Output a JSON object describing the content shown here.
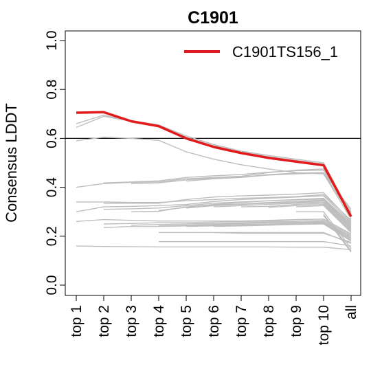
{
  "chart_data": {
    "type": "line",
    "title": "C1901",
    "xlabel": "",
    "ylabel": "Consensus LDDT",
    "categories": [
      "top 1",
      "top 2",
      "top 3",
      "top 4",
      "top 5",
      "top 6",
      "top 7",
      "top 8",
      "top 9",
      "top 10",
      "all"
    ],
    "yticks": [
      "0.0",
      "0.2",
      "0.4",
      "0.6",
      "0.8",
      "1.0"
    ],
    "ylim": [
      0,
      1
    ],
    "reference_line": 0.6,
    "legend": {
      "position": "top-right",
      "label": "C1901TS156_1"
    },
    "colors": {
      "highlight": "#e31a1c",
      "others": "#bebebe",
      "reference": "#000000"
    },
    "highlight_series": {
      "name": "C1901TS156_1",
      "values": [
        0.705,
        0.707,
        0.67,
        0.65,
        0.6,
        0.565,
        0.54,
        0.52,
        0.505,
        0.49,
        0.28
      ]
    },
    "other_series": [
      [
        0.66,
        0.695,
        0.672,
        0.655,
        0.61,
        0.575,
        0.548,
        0.53,
        0.515,
        0.5,
        0.29
      ],
      [
        0.645,
        0.69,
        0.67,
        0.65,
        0.605,
        0.57,
        0.545,
        0.525,
        0.51,
        0.495,
        0.285
      ],
      [
        0.59,
        0.605,
        0.6,
        0.592,
        0.545,
        0.515,
        0.492,
        0.475,
        0.46,
        0.455,
        0.27
      ],
      [
        0.4,
        0.415,
        0.42,
        0.422,
        0.435,
        0.44,
        0.445,
        0.46,
        0.47,
        0.475,
        0.3
      ],
      [
        null,
        0.418,
        0.422,
        0.426,
        0.44,
        0.447,
        0.452,
        0.462,
        0.468,
        0.47,
        0.295
      ],
      [
        null,
        null,
        0.415,
        0.418,
        0.43,
        0.438,
        0.442,
        0.452,
        0.458,
        0.46,
        0.31
      ],
      [
        null,
        null,
        null,
        null,
        0.425,
        0.435,
        0.44,
        0.45,
        0.455,
        0.458,
        0.285
      ],
      [
        0.34,
        0.34,
        0.338,
        0.338,
        0.345,
        0.35,
        0.355,
        0.358,
        0.362,
        0.37,
        0.265
      ],
      [
        null,
        0.335,
        0.335,
        0.335,
        0.35,
        0.36,
        0.365,
        0.368,
        0.372,
        0.378,
        0.26
      ],
      [
        0.3,
        0.32,
        0.322,
        0.325,
        0.33,
        0.342,
        0.35,
        0.355,
        0.36,
        0.365,
        0.255
      ],
      [
        null,
        0.31,
        0.312,
        0.315,
        0.325,
        0.335,
        0.34,
        0.345,
        0.35,
        0.355,
        0.25
      ],
      [
        null,
        null,
        0.3,
        0.302,
        0.32,
        0.33,
        0.338,
        0.345,
        0.348,
        0.352,
        0.245
      ],
      [
        null,
        null,
        null,
        0.305,
        0.318,
        0.328,
        0.332,
        0.338,
        0.342,
        0.348,
        0.24
      ],
      [
        null,
        null,
        null,
        null,
        0.315,
        0.325,
        0.33,
        0.335,
        0.338,
        0.345,
        0.235
      ],
      [
        null,
        null,
        null,
        null,
        null,
        0.32,
        0.325,
        0.33,
        0.335,
        0.34,
        0.23
      ],
      [
        null,
        null,
        null,
        null,
        null,
        null,
        0.32,
        0.322,
        0.33,
        0.335,
        0.225
      ],
      [
        null,
        null,
        null,
        null,
        null,
        null,
        null,
        0.318,
        0.325,
        0.33,
        0.22
      ],
      [
        null,
        null,
        null,
        null,
        null,
        null,
        null,
        null,
        0.32,
        0.325,
        0.215
      ],
      [
        0.26,
        0.268,
        0.265,
        0.262,
        0.262,
        0.262,
        0.262,
        0.265,
        0.268,
        0.27,
        0.21
      ],
      [
        null,
        0.25,
        0.252,
        0.255,
        0.255,
        0.258,
        0.26,
        0.262,
        0.262,
        0.265,
        0.205
      ],
      [
        null,
        null,
        0.245,
        0.248,
        0.25,
        0.252,
        0.255,
        0.258,
        0.258,
        0.26,
        0.2
      ],
      [
        null,
        null,
        null,
        0.242,
        0.245,
        0.248,
        0.252,
        0.255,
        0.255,
        0.258,
        0.195
      ],
      [
        null,
        0.235,
        0.24,
        0.24,
        0.242,
        0.245,
        0.248,
        0.25,
        0.252,
        0.255,
        0.19
      ],
      [
        null,
        null,
        null,
        null,
        0.24,
        0.242,
        0.245,
        0.248,
        0.25,
        0.252,
        0.185
      ],
      [
        null,
        null,
        null,
        null,
        null,
        0.24,
        0.242,
        0.245,
        0.248,
        0.25,
        0.18
      ],
      [
        null,
        null,
        null,
        0.215,
        0.215,
        0.215,
        0.212,
        0.212,
        0.212,
        0.212,
        0.175
      ],
      [
        null,
        null,
        null,
        null,
        null,
        0.215,
        0.215,
        0.215,
        0.215,
        0.215,
        0.17
      ],
      [
        null,
        null,
        null,
        0.178,
        0.178,
        0.178,
        0.178,
        0.178,
        0.178,
        0.178,
        0.16
      ],
      [
        0.16,
        0.158,
        0.157,
        0.156,
        0.156,
        0.156,
        0.156,
        0.156,
        0.155,
        0.155,
        0.145
      ],
      [
        null,
        null,
        null,
        null,
        null,
        null,
        null,
        null,
        0.3,
        0.3,
        0.15
      ],
      [
        null,
        null,
        null,
        null,
        null,
        null,
        null,
        null,
        null,
        0.29,
        0.14
      ],
      [
        null,
        null,
        null,
        null,
        null,
        null,
        null,
        null,
        null,
        0.285,
        0.135
      ]
    ]
  }
}
